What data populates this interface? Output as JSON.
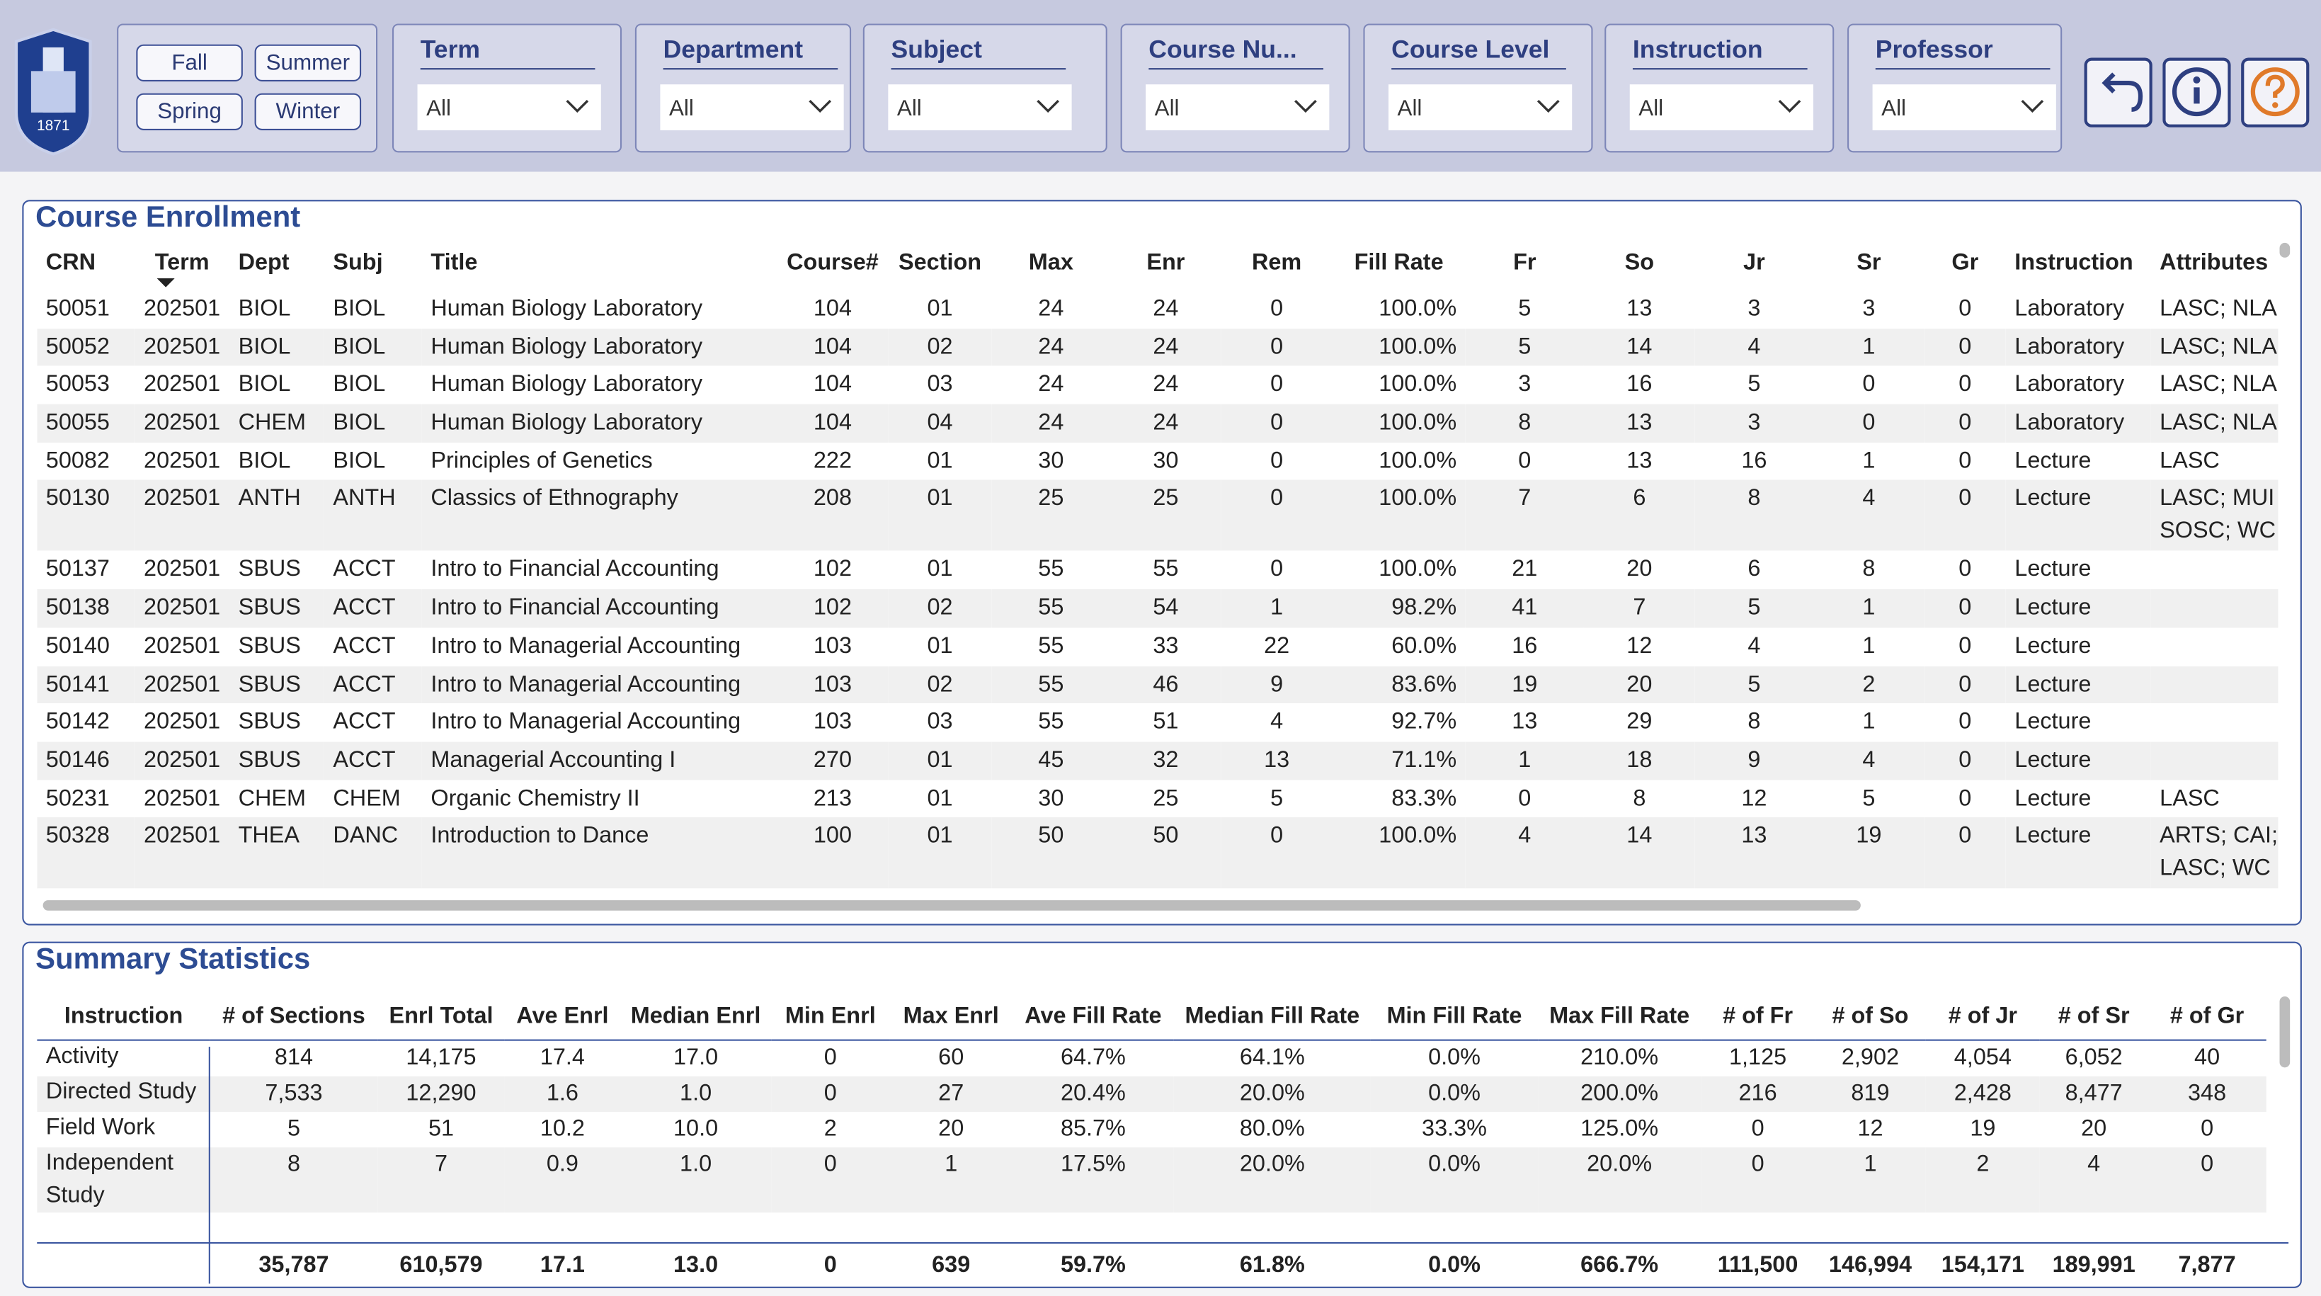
{
  "logo_year": "1871",
  "filters": {
    "seasons": [
      "Fall",
      "Summer",
      "Spring",
      "Winter"
    ],
    "slicers": [
      {
        "label": "Term",
        "value": "All"
      },
      {
        "label": "Department",
        "value": "All"
      },
      {
        "label": "Subject",
        "value": "All"
      },
      {
        "label": "Course Nu...",
        "value": "All"
      },
      {
        "label": "Course Level",
        "value": "All"
      },
      {
        "label": "Instruction",
        "value": "All"
      },
      {
        "label": "Professor",
        "value": "All"
      }
    ]
  },
  "enrollment": {
    "title": "Course Enrollment",
    "columns": [
      "CRN",
      "Term",
      "Dept",
      "Subj",
      "Title",
      "Course#",
      "Section",
      "Max",
      "Enr",
      "Rem",
      "Fill Rate",
      "Fr",
      "So",
      "Jr",
      "Sr",
      "Gr",
      "Instruction",
      "Attributes"
    ],
    "rows": [
      [
        "50051",
        "202501",
        "BIOL",
        "BIOL",
        "Human Biology Laboratory",
        "104",
        "01",
        "24",
        "24",
        "0",
        "100.0%",
        "5",
        "13",
        "3",
        "3",
        "0",
        "Laboratory",
        "LASC; NLA"
      ],
      [
        "50052",
        "202501",
        "BIOL",
        "BIOL",
        "Human Biology Laboratory",
        "104",
        "02",
        "24",
        "24",
        "0",
        "100.0%",
        "5",
        "14",
        "4",
        "1",
        "0",
        "Laboratory",
        "LASC; NLA"
      ],
      [
        "50053",
        "202501",
        "BIOL",
        "BIOL",
        "Human Biology Laboratory",
        "104",
        "03",
        "24",
        "24",
        "0",
        "100.0%",
        "3",
        "16",
        "5",
        "0",
        "0",
        "Laboratory",
        "LASC; NLA"
      ],
      [
        "50055",
        "202501",
        "CHEM",
        "BIOL",
        "Human Biology Laboratory",
        "104",
        "04",
        "24",
        "24",
        "0",
        "100.0%",
        "8",
        "13",
        "3",
        "0",
        "0",
        "Laboratory",
        "LASC; NLA"
      ],
      [
        "50082",
        "202501",
        "BIOL",
        "BIOL",
        "Principles of Genetics",
        "222",
        "01",
        "30",
        "30",
        "0",
        "100.0%",
        "0",
        "13",
        "16",
        "1",
        "0",
        "Lecture",
        "LASC"
      ],
      [
        "50130",
        "202501",
        "ANTH",
        "ANTH",
        "Classics of Ethnography",
        "208",
        "01",
        "25",
        "25",
        "0",
        "100.0%",
        "7",
        "6",
        "8",
        "4",
        "0",
        "Lecture",
        "LASC; MUI SOSC; WC"
      ],
      [
        "50137",
        "202501",
        "SBUS",
        "ACCT",
        "Intro to Financial Accounting",
        "102",
        "01",
        "55",
        "55",
        "0",
        "100.0%",
        "21",
        "20",
        "6",
        "8",
        "0",
        "Lecture",
        null
      ],
      [
        "50138",
        "202501",
        "SBUS",
        "ACCT",
        "Intro to Financial Accounting",
        "102",
        "02",
        "55",
        "54",
        "1",
        "98.2%",
        "41",
        "7",
        "5",
        "1",
        "0",
        "Lecture",
        null
      ],
      [
        "50140",
        "202501",
        "SBUS",
        "ACCT",
        "Intro to Managerial Accounting",
        "103",
        "01",
        "55",
        "33",
        "22",
        "60.0%",
        "16",
        "12",
        "4",
        "1",
        "0",
        "Lecture",
        null
      ],
      [
        "50141",
        "202501",
        "SBUS",
        "ACCT",
        "Intro to Managerial Accounting",
        "103",
        "02",
        "55",
        "46",
        "9",
        "83.6%",
        "19",
        "20",
        "5",
        "2",
        "0",
        "Lecture",
        null
      ],
      [
        "50142",
        "202501",
        "SBUS",
        "ACCT",
        "Intro to Managerial Accounting",
        "103",
        "03",
        "55",
        "51",
        "4",
        "92.7%",
        "13",
        "29",
        "8",
        "1",
        "0",
        "Lecture",
        null
      ],
      [
        "50146",
        "202501",
        "SBUS",
        "ACCT",
        "Managerial Accounting I",
        "270",
        "01",
        "45",
        "32",
        "13",
        "71.1%",
        "1",
        "18",
        "9",
        "4",
        "0",
        "Lecture",
        null
      ],
      [
        "50231",
        "202501",
        "CHEM",
        "CHEM",
        "Organic Chemistry II",
        "213",
        "01",
        "30",
        "25",
        "5",
        "83.3%",
        "0",
        "8",
        "12",
        "5",
        "0",
        "Lecture",
        "LASC"
      ],
      [
        "50328",
        "202501",
        "THEA",
        "DANC",
        "Introduction to Dance",
        "100",
        "01",
        "50",
        "50",
        "0",
        "100.0%",
        "4",
        "14",
        "13",
        "19",
        "0",
        "Lecture",
        "ARTS; CAI; LASC; WC"
      ]
    ]
  },
  "summary": {
    "title": "Summary Statistics",
    "columns": [
      "Instruction",
      "# of Sections",
      "Enrl Total",
      "Ave Enrl",
      "Median Enrl",
      "Min Enrl",
      "Max Enrl",
      "Ave Fill Rate",
      "Median Fill Rate",
      "Min Fill Rate",
      "Max Fill Rate",
      "# of Fr",
      "# of So",
      "# of Jr",
      "# of Sr",
      "# of Gr"
    ],
    "rows": [
      [
        "Activity",
        "814",
        "14,175",
        "17.4",
        "17.0",
        "0",
        "60",
        "64.7%",
        "64.1%",
        "0.0%",
        "210.0%",
        "1,125",
        "2,902",
        "4,054",
        "6,052",
        "40"
      ],
      [
        "Directed Study",
        "7,533",
        "12,290",
        "1.6",
        "1.0",
        "0",
        "27",
        "20.4%",
        "20.0%",
        "0.0%",
        "200.0%",
        "216",
        "819",
        "2,428",
        "8,477",
        "348"
      ],
      [
        "Field Work",
        "5",
        "51",
        "10.2",
        "10.0",
        "2",
        "20",
        "85.7%",
        "80.0%",
        "33.3%",
        "125.0%",
        "0",
        "12",
        "19",
        "20",
        "0"
      ],
      [
        "Independent Study",
        "8",
        "7",
        "0.9",
        "1.0",
        "0",
        "1",
        "17.5%",
        "20.0%",
        "0.0%",
        "20.0%",
        "0",
        "1",
        "2",
        "4",
        "0"
      ]
    ],
    "total": [
      "35,787",
      "610,579",
      "17.1",
      "13.0",
      "0",
      "639",
      "59.7%",
      "61.8%",
      "0.0%",
      "666.7%",
      "111,500",
      "146,994",
      "154,171",
      "189,991",
      "7,877"
    ]
  }
}
